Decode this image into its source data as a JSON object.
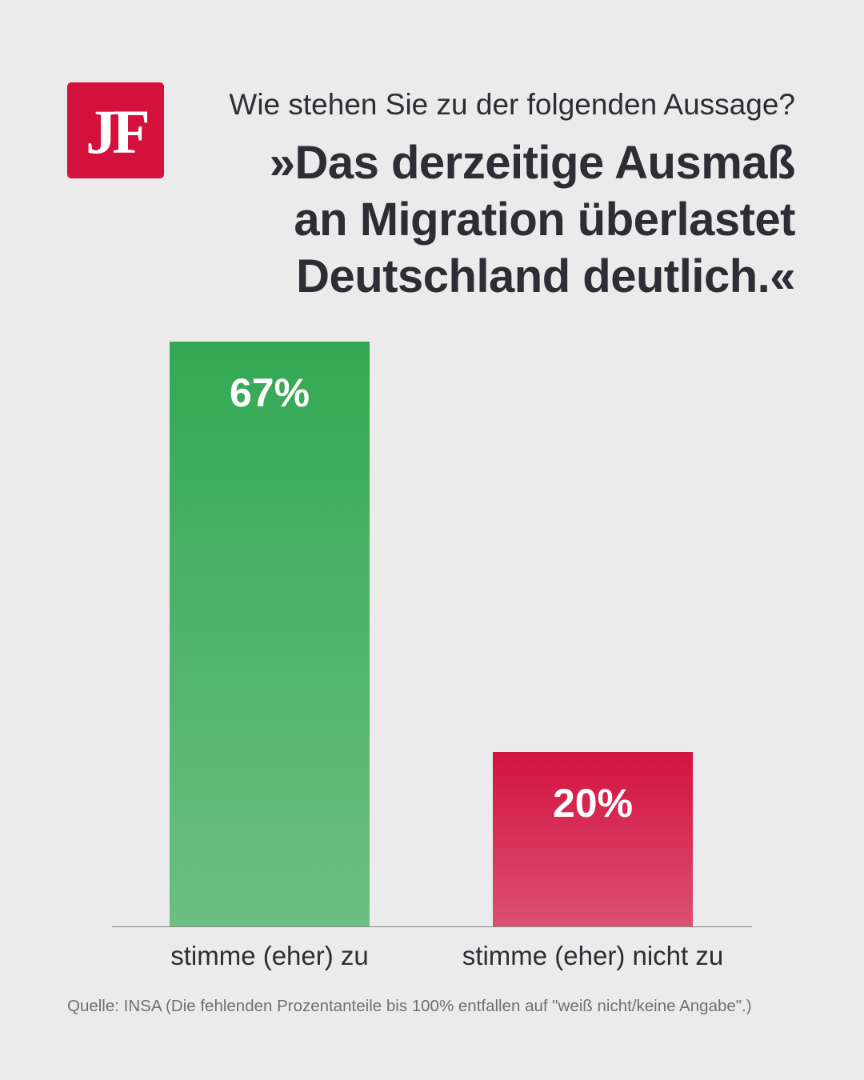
{
  "logo": {
    "text": "JF",
    "color": "#d4103d"
  },
  "header": {
    "question": "Wie stehen Sie zu der folgenden Aussage?",
    "statement_lines": [
      "»Das derzeitige Ausmaß",
      "an Migration überlastet",
      "Deutschland deutlich.«"
    ]
  },
  "chart_data": {
    "type": "bar",
    "categories": [
      "stimme (eher) zu",
      "stimme (eher) nicht zu"
    ],
    "values": [
      67,
      20
    ],
    "data_labels": [
      "67%",
      "20%"
    ],
    "unit": "%",
    "ylim": [
      0,
      100
    ],
    "grid": false,
    "colors": [
      {
        "top": "#33a853",
        "bottom": "#6bbf83"
      },
      {
        "top": "#d3133f",
        "bottom": "#db5070"
      }
    ]
  },
  "footer": {
    "source": "Quelle: INSA (Die fehlenden Prozentanteile bis 100% entfallen auf \"weiß nicht/keine Angabe\".)"
  }
}
